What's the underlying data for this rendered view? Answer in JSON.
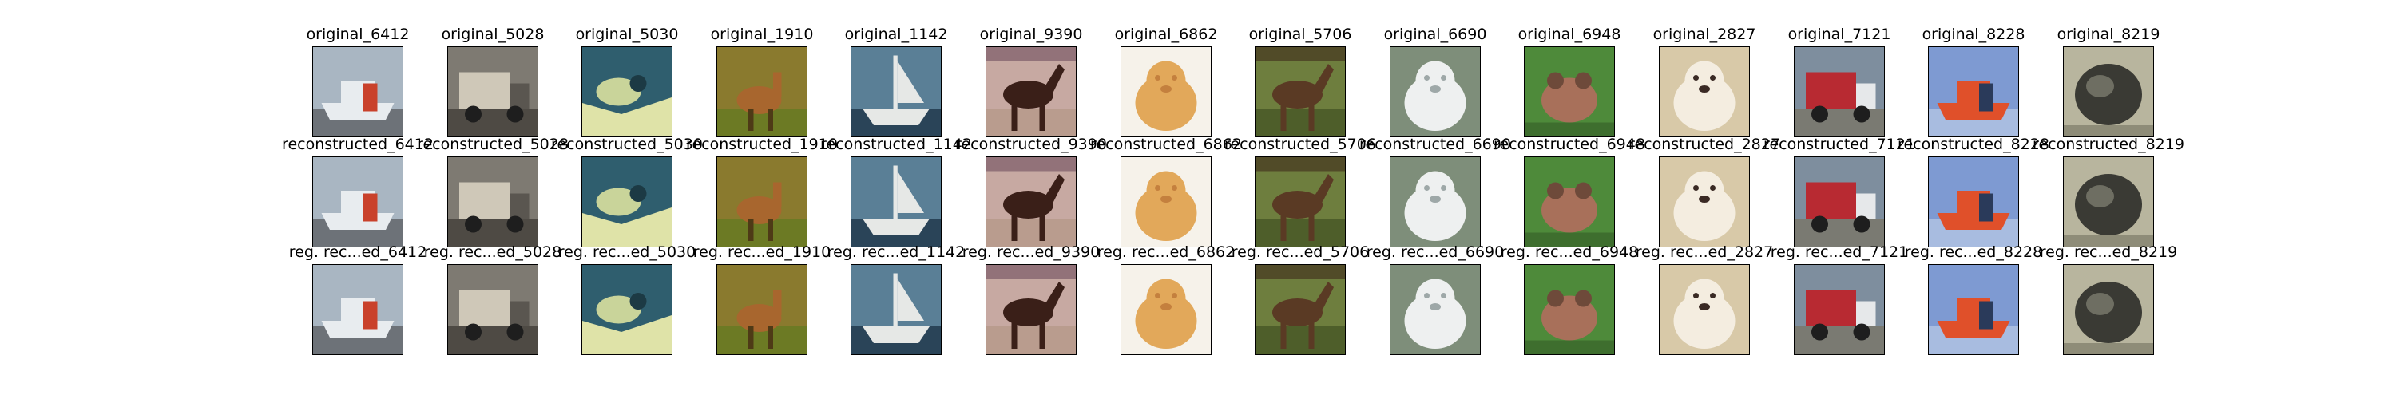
{
  "figure": {
    "rows": [
      {
        "row": "original",
        "titles": [
          "original_6412",
          "original_5028",
          "original_5030",
          "original_1910",
          "original_1142",
          "original_9390",
          "original_6862",
          "original_5706",
          "original_6690",
          "original_6948",
          "original_2827",
          "original_7121",
          "original_8228",
          "original_8219"
        ]
      },
      {
        "row": "reconstructed",
        "titles": [
          "reconstructed_6412",
          "reconstructed_5028",
          "reconstructed_5030",
          "reconstructed_1910",
          "reconstructed_1142",
          "reconstructed_9390",
          "reconstructed_6862",
          "reconstructed_5706",
          "reconstructed_6690",
          "reconstructed_6948",
          "reconstructed_2827",
          "reconstructed_7121",
          "reconstructed_8228",
          "reconstructed_8219"
        ]
      },
      {
        "row": "regularized-reconstructed",
        "titles": [
          "reg. rec...ed_6412",
          "reg. rec...ed_5028",
          "reg. rec...ed_5030",
          "reg. rec...ed_1910",
          "reg. rec...ed_1142",
          "reg. rec...ed_9390",
          "reg. rec...ed_6862",
          "reg. rec...ed_5706",
          "reg. rec...ed_6690",
          "reg. rec...ed_6948",
          "reg. rec...ed_2827",
          "reg. rec...ed_7121",
          "reg. rec...ed_8228",
          "reg. rec...ed_8219"
        ]
      }
    ],
    "images": [
      {
        "subject": "ship-icon",
        "colors": {
          "bg": "#a9b6c2",
          "main": "#e8ecef",
          "accent": "#c9412b",
          "ground": "#6d7278"
        }
      },
      {
        "subject": "truck-icon",
        "colors": {
          "bg": "#7e7a72",
          "main": "#cfc8b8",
          "accent": "#5a5650",
          "ground": "#4e4a44"
        }
      },
      {
        "subject": "bird-icon",
        "colors": {
          "bg": "#2f5e6e",
          "main": "#c9d49a",
          "accent": "#1c3a44",
          "ground": "#dfe3a8"
        }
      },
      {
        "subject": "deer-icon",
        "colors": {
          "bg": "#8a7a2e",
          "main": "#a8662e",
          "accent": "#4e3a16",
          "ground": "#6c7a24"
        }
      },
      {
        "subject": "boat-icon",
        "colors": {
          "bg": "#5a7f96",
          "main": "#e6e8e6",
          "accent": "#243a4e",
          "ground": "#2a4458"
        }
      },
      {
        "subject": "horse-icon",
        "colors": {
          "bg": "#c7a9a2",
          "main": "#3a1f18",
          "accent": "#6e4e5e",
          "ground": "#b99c8e"
        }
      },
      {
        "subject": "dog-icon",
        "colors": {
          "bg": "#f6f2ea",
          "main": "#e2a85a",
          "accent": "#c4803e",
          "ground": "#f2ebe0"
        }
      },
      {
        "subject": "horse-icon",
        "colors": {
          "bg": "#6e7e3e",
          "main": "#5a3a24",
          "accent": "#3e2a1a",
          "ground": "#4e5e2a"
        }
      },
      {
        "subject": "dog-icon",
        "colors": {
          "bg": "#7e8e7a",
          "main": "#eef0f0",
          "accent": "#9ea8a8",
          "ground": "#6e7e6a"
        }
      },
      {
        "subject": "frog-icon",
        "colors": {
          "bg": "#4e8a3a",
          "main": "#a8705a",
          "accent": "#6e4a3a",
          "ground": "#3e6e2e"
        }
      },
      {
        "subject": "dog-icon",
        "colors": {
          "bg": "#d8c9a8",
          "main": "#f4ede0",
          "accent": "#3a2a24",
          "ground": "#c9b896"
        }
      },
      {
        "subject": "truck-icon",
        "colors": {
          "bg": "#7e8e9e",
          "main": "#b82a32",
          "accent": "#e6e8ea",
          "ground": "#7a7a72"
        }
      },
      {
        "subject": "ship-icon",
        "colors": {
          "bg": "#7e9ad2",
          "main": "#e0502a",
          "accent": "#2a3a5a",
          "ground": "#a8bce0"
        }
      },
      {
        "subject": "cat-icon",
        "colors": {
          "bg": "#b8b59e",
          "main": "#3a3a34",
          "accent": "#6e6e62",
          "ground": "#8e8c78"
        }
      }
    ]
  }
}
